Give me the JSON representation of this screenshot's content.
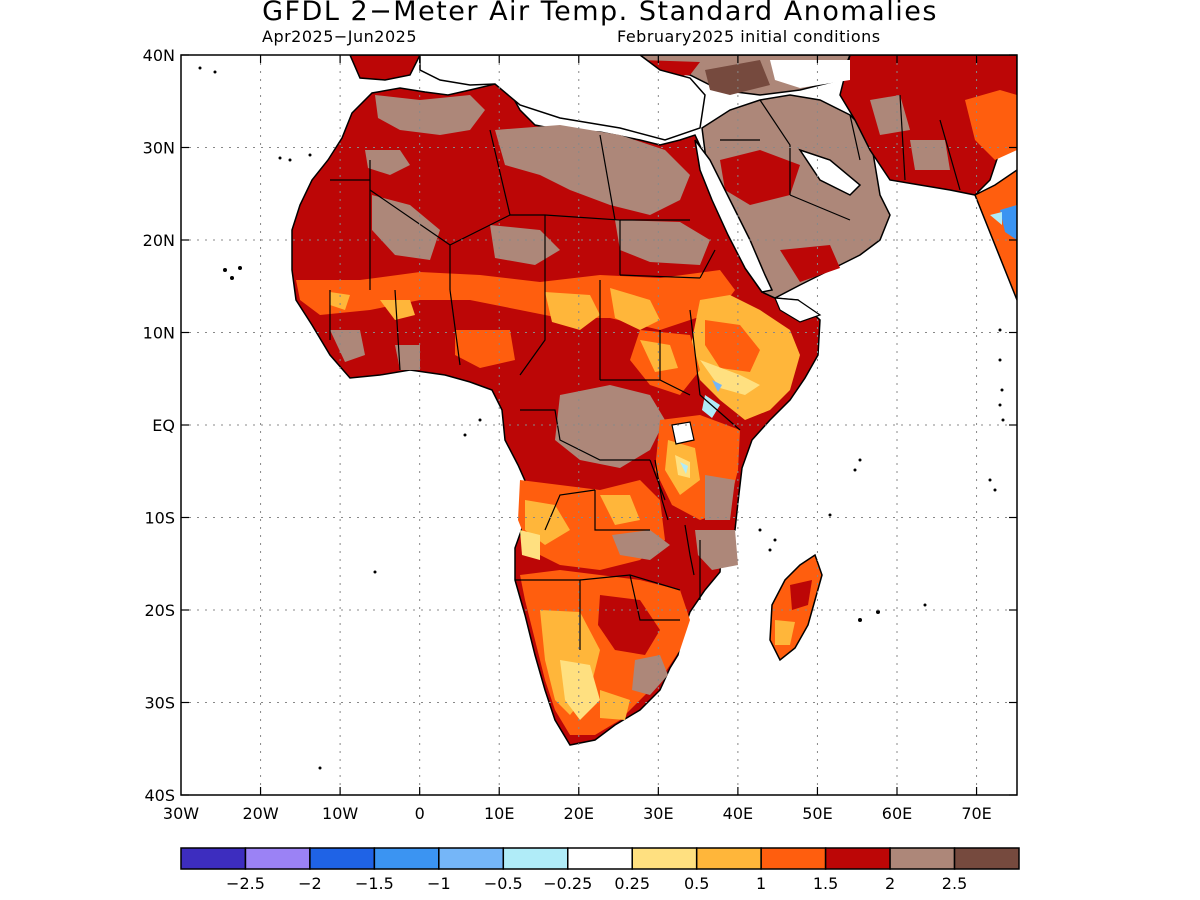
{
  "header": {
    "title": "GFDL 2-Meter Air Temp. Standard Anomalies",
    "subtitle_left": "Apr2025-Jun2025",
    "subtitle_right": "February2025 initial conditions"
  },
  "axes": {
    "lat_ticks": [
      "40N",
      "30N",
      "20N",
      "10N",
      "EQ",
      "10S",
      "20S",
      "30S",
      "40S"
    ],
    "lon_ticks": [
      "30W",
      "20W",
      "10W",
      "0",
      "10E",
      "20E",
      "30E",
      "40E",
      "50E",
      "60E",
      "70E"
    ]
  },
  "colorbar": {
    "labels": [
      "-2.5",
      "-2",
      "-1.5",
      "-1",
      "-0.5",
      "-0.25",
      "0.25",
      "0.5",
      "1",
      "1.5",
      "2",
      "2.5"
    ],
    "colors": [
      "#3d2dbf",
      "#9b82f5",
      "#1f63e6",
      "#3b94f2",
      "#75b6f8",
      "#b0ecf8",
      "#ffffff",
      "#ffe080",
      "#ffb63a",
      "#ff5e0e",
      "#bc0606",
      "#ad8779",
      "#764a3e"
    ]
  }
}
